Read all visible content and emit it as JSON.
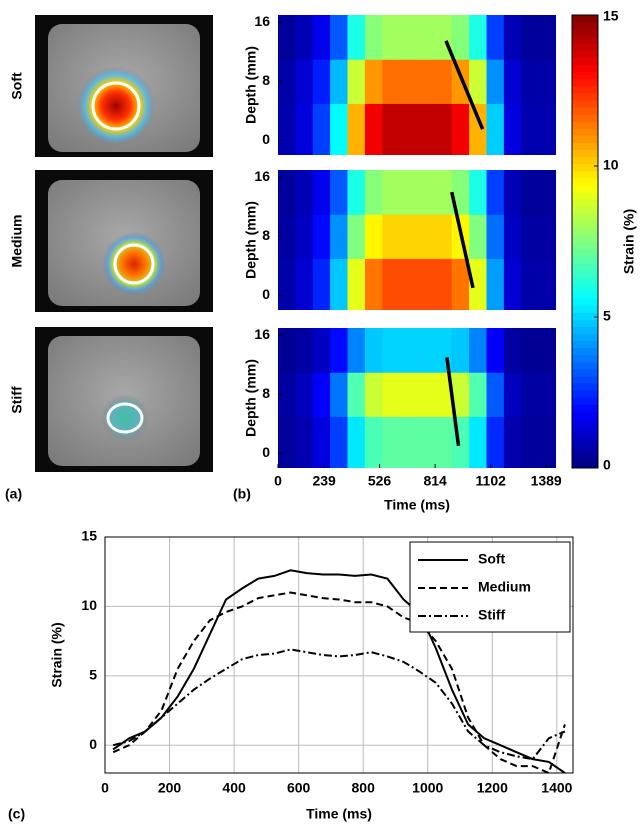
{
  "panel_labels": [
    "(a)",
    "(b)",
    "(c)"
  ],
  "panel_a": {
    "rows": [
      "Soft",
      "Medium",
      "Stiff"
    ]
  },
  "chart_data": [
    {
      "type": "heatmap",
      "ylabel": "Depth (mm)",
      "x_bins": [
        0,
        90,
        180,
        270,
        360,
        450,
        540,
        630,
        720,
        810,
        900,
        990,
        1080,
        1170,
        1260,
        1350,
        1440
      ],
      "y_bins": [
        -2,
        5,
        11,
        17
      ],
      "z": [
        [
          0.7,
          1.4,
          2.8,
          5.6,
          10.5,
          13.3,
          14,
          14,
          14,
          14,
          13.3,
          10.5,
          4.9,
          1.4,
          0.7,
          0.7
        ],
        [
          0.6,
          1.2,
          2.3,
          4.6,
          8.6,
          10.9,
          11.5,
          11.5,
          11.5,
          11.5,
          10.9,
          8.6,
          4,
          1.2,
          0.6,
          0.6
        ],
        [
          0.4,
          0.8,
          1.6,
          3.2,
          6,
          7.6,
          8,
          8,
          8,
          8,
          7.6,
          6,
          2.8,
          0.8,
          0.4,
          0.4
        ]
      ],
      "xlim": [
        0,
        1440
      ],
      "ylim": [
        -2,
        17
      ],
      "yticks": [
        0,
        8,
        16
      ],
      "annotation_line": {
        "x": [
          870,
          1060
        ],
        "y": [
          13.5,
          1.5
        ]
      },
      "clim": [
        0,
        15
      ],
      "cticks": [
        0,
        5,
        10,
        15
      ],
      "colorbar_label": "Strain (%)"
    },
    {
      "type": "heatmap",
      "ylabel": "Depth (mm)",
      "x_bins": [
        0,
        90,
        180,
        270,
        360,
        450,
        540,
        630,
        720,
        810,
        900,
        990,
        1080,
        1170,
        1260,
        1350,
        1440
      ],
      "y_bins": [
        -2,
        5,
        11,
        17
      ],
      "z": [
        [
          0.6,
          1.2,
          2.4,
          4.8,
          9,
          11.4,
          12,
          12,
          12,
          12,
          11.4,
          9,
          4.2,
          1.2,
          0.6,
          0.6
        ],
        [
          0.5,
          1,
          2,
          4,
          7.5,
          9.5,
          10,
          10,
          10,
          10,
          9.5,
          7.5,
          3.5,
          1,
          0.5,
          0.5
        ],
        [
          0.4,
          0.8,
          1.6,
          3.2,
          6,
          7.6,
          8,
          8,
          8,
          8,
          7.6,
          6,
          2.8,
          0.8,
          0.4,
          0.4
        ]
      ],
      "xlim": [
        0,
        1440
      ],
      "ylim": [
        -2,
        17
      ],
      "yticks": [
        0,
        8,
        16
      ],
      "annotation_line": {
        "x": [
          900,
          1010
        ],
        "y": [
          14,
          1
        ]
      }
    },
    {
      "type": "heatmap",
      "ylabel": "Depth (mm)",
      "xlabel": "Time (ms)",
      "x_bins": [
        0,
        90,
        180,
        270,
        360,
        450,
        540,
        630,
        720,
        810,
        900,
        990,
        1080,
        1170,
        1260,
        1350,
        1440
      ],
      "y_bins": [
        -2,
        5,
        11,
        17
      ],
      "z": [
        [
          0.4,
          0.7,
          1.4,
          2.8,
          5.3,
          6.7,
          7,
          7,
          7,
          7,
          6.7,
          5.3,
          2.5,
          0.7,
          0.4,
          0.4
        ],
        [
          0.5,
          0.9,
          1.8,
          3.6,
          6.8,
          8.6,
          9,
          9,
          9,
          9,
          8.6,
          6.8,
          3.2,
          0.9,
          0.5,
          0.5
        ],
        [
          0.3,
          0.5,
          1,
          2,
          3.8,
          4.8,
          5,
          5,
          5,
          5,
          4.8,
          3.8,
          1.8,
          0.5,
          0.3,
          0.3
        ]
      ],
      "xlim": [
        0,
        1440
      ],
      "ylim": [
        -2,
        17
      ],
      "yticks": [
        0,
        8,
        16
      ],
      "xticks": [
        0,
        239,
        526,
        814,
        1102,
        1389
      ],
      "annotation_line": {
        "x": [
          875,
          935
        ],
        "y": [
          13,
          1
        ]
      }
    },
    {
      "type": "line",
      "xlabel": "Time (ms)",
      "ylabel": "Strain (%)",
      "x": [
        25,
        75,
        125,
        175,
        225,
        275,
        325,
        375,
        425,
        475,
        525,
        575,
        625,
        675,
        725,
        775,
        825,
        875,
        925,
        975,
        1025,
        1075,
        1125,
        1175,
        1225,
        1275,
        1325,
        1375,
        1425
      ],
      "series": [
        {
          "name": "Soft",
          "color": "#000000",
          "dash": "solid",
          "values": [
            -0.3,
            0.5,
            1,
            2,
            3.5,
            5.5,
            8,
            10.5,
            11.3,
            12,
            12.2,
            12.6,
            12.4,
            12.3,
            12.3,
            12.2,
            12.3,
            12,
            10.5,
            9.5,
            7,
            4,
            1.5,
            0.5,
            0,
            -0.5,
            -1,
            -1.2,
            -2
          ]
        },
        {
          "name": "Medium",
          "color": "#000000",
          "dash": "dashed",
          "values": [
            -0.5,
            0,
            1,
            2.5,
            5.5,
            7.5,
            9,
            9.6,
            10,
            10.6,
            10.8,
            11,
            10.8,
            10.6,
            10.5,
            10.3,
            10.3,
            10,
            9.2,
            8.8,
            7.5,
            5.5,
            2,
            0,
            -1,
            -1.5,
            -1.5,
            -2,
            1.5
          ]
        },
        {
          "name": "Stiff",
          "color": "#000000",
          "dash": "dashdot",
          "values": [
            0,
            0.3,
            1,
            2,
            3,
            4,
            4.8,
            5.5,
            6.2,
            6.5,
            6.6,
            6.9,
            6.7,
            6.5,
            6.4,
            6.5,
            6.7,
            6.4,
            6,
            5.3,
            4.5,
            3,
            1,
            0,
            -0.5,
            -0.8,
            -1,
            0.5,
            1
          ]
        }
      ],
      "xlim": [
        0,
        1450
      ],
      "ylim": [
        -2,
        15
      ],
      "xticks": [
        0,
        200,
        400,
        600,
        800,
        1000,
        1200,
        1400
      ],
      "yticks": [
        0,
        5,
        10,
        15
      ],
      "grid": true,
      "legend": "upper-right"
    }
  ]
}
